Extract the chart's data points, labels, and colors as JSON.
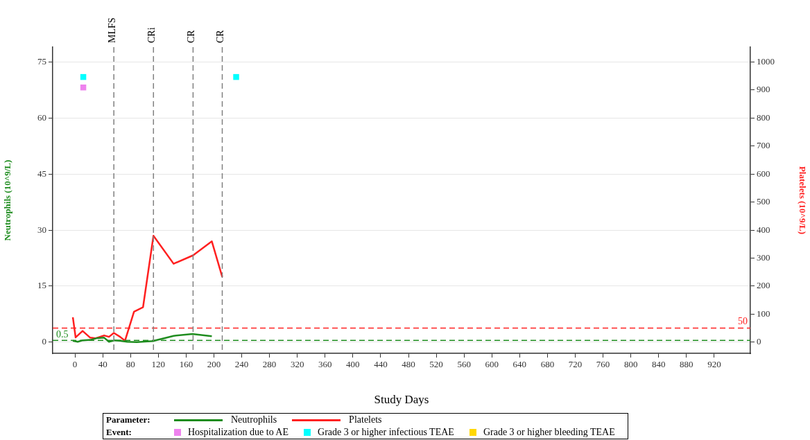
{
  "chart_data": {
    "type": "line",
    "xlabel": "Study Days",
    "ylabel": "Neutrophils (10^9/L)",
    "y2label": "Platelets (10^9/L)",
    "legend_title": "Parameter:",
    "annotations": [
      "Event:"
    ],
    "xlim": [
      -32,
      972
    ],
    "xticks": [
      0,
      40,
      80,
      120,
      160,
      200,
      240,
      280,
      320,
      360,
      400,
      440,
      480,
      520,
      560,
      600,
      640,
      680,
      720,
      760,
      800,
      840,
      880,
      920
    ],
    "ylim": [
      -3,
      79
    ],
    "yticks": [
      0,
      15,
      30,
      45,
      60,
      75
    ],
    "y2lim": [
      -40,
      1053.3
    ],
    "y2ticks": [
      0,
      100,
      200,
      300,
      400,
      500,
      600,
      700,
      800,
      900,
      1000
    ],
    "grid": "y",
    "legend": "bottom",
    "line_style": "solid",
    "series": [
      {
        "name": "Neutrophils",
        "color": "#1e8c1e",
        "marker": "none",
        "x": [
          -3,
          4,
          11,
          22,
          32,
          42,
          49,
          57,
          65,
          75,
          89,
          112,
          142,
          169,
          197
        ],
        "values": [
          0.4,
          0.1,
          0.5,
          0.6,
          1.1,
          1.2,
          0.1,
          0.5,
          0.4,
          0.1,
          0.0,
          0.3,
          1.7,
          2.2,
          1.6
        ]
      },
      {
        "name": "Platelets",
        "color": "#ff2020",
        "marker": "none",
        "axis": "y2",
        "x": [
          -3,
          1,
          11,
          22,
          30,
          42,
          49,
          56,
          65,
          72,
          85,
          98,
          113,
          142,
          170,
          197,
          212
        ],
        "values": [
          89,
          17,
          40,
          16,
          14,
          24,
          19,
          33,
          19,
          5,
          109,
          125,
          380,
          280,
          310,
          360,
          233
        ]
      },
      {
        "name": "Hospitalization due to AE",
        "type": "scatter",
        "color": "#ee82ee",
        "marker": "square",
        "x": [
          12
        ],
        "values": [
          68.2
        ]
      },
      {
        "name": "Grade 3 or higher infectious TEAE",
        "type": "scatter",
        "color": "#00ffff",
        "marker": "square",
        "x": [
          12,
          232
        ],
        "values": [
          71,
          71
        ]
      },
      {
        "name": "Grade 3 or higher bleeding TEAE",
        "type": "scatter",
        "color": "#ffd700",
        "marker": "square"
      }
    ],
    "ref_lines": [
      {
        "axis": "y",
        "value": 0.5,
        "label": "0.5",
        "color": "#1e8c1e",
        "line_style": "dashed"
      },
      {
        "axis": "y2",
        "value": 50,
        "label": "50",
        "color": "#ff2020",
        "line_style": "dashed"
      },
      {
        "axis": "x",
        "value": 56,
        "label": "MLFS",
        "color": "#808080",
        "line_style": "dashed"
      },
      {
        "axis": "x",
        "value": 113,
        "label": "CRi",
        "color": "#808080",
        "line_style": "dashed"
      },
      {
        "axis": "x",
        "value": 170,
        "label": "CR",
        "color": "#808080",
        "line_style": "dashed"
      },
      {
        "axis": "x",
        "value": 212,
        "label": "CR",
        "color": "#808080",
        "line_style": "dashed"
      }
    ]
  }
}
